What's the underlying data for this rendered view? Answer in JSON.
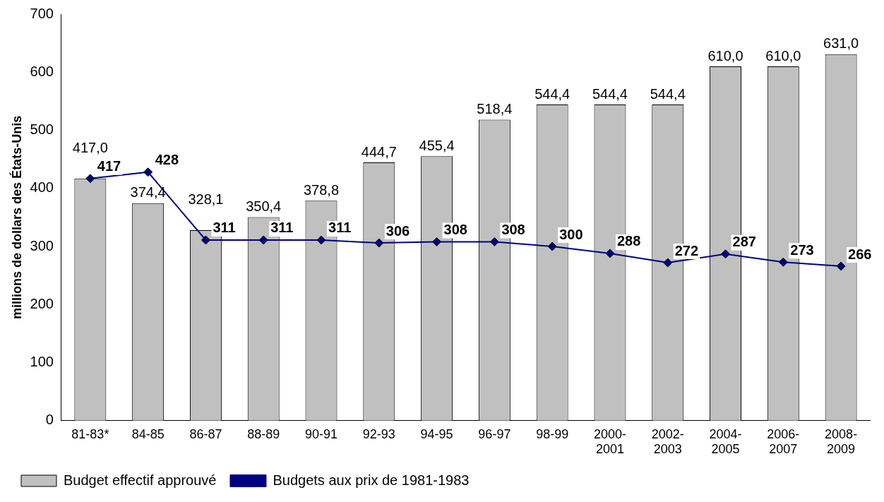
{
  "chart_data": {
    "type": "bar",
    "ylabel": "millions de dollars des États-Unis",
    "categories": [
      "81-83*",
      "84-85",
      "86-87",
      "88-89",
      "90-91",
      "92-93",
      "94-95",
      "96-97",
      "98-99",
      "2000-2001",
      "2002-2003",
      "2004-2005",
      "2006-2007",
      "2008-2009"
    ],
    "series": [
      {
        "name": "Budget effectif approuvé",
        "type": "bar",
        "color": "#c0c0c0",
        "values": [
          417.0,
          374.4,
          328.1,
          350.4,
          378.8,
          444.7,
          455.4,
          518.4,
          544.4,
          544.4,
          544.4,
          610.0,
          610.0,
          631.0
        ],
        "value_labels": [
          "417,0",
          "374,4",
          "328,1",
          "350,4",
          "378,8",
          "444,7",
          "455,4",
          "518,4",
          "544,4",
          "544,4",
          "544,4",
          "610,0",
          "610,0",
          "631,0"
        ]
      },
      {
        "name": "Budgets aux prix de 1981-1983",
        "type": "line",
        "color": "#000080",
        "marker": "diamond",
        "line_style": "solid",
        "values": [
          417,
          428,
          311,
          311,
          311,
          306,
          308,
          308,
          300,
          288,
          272,
          287,
          273,
          266
        ],
        "value_labels": [
          "417",
          "428",
          "311",
          "311",
          "311",
          "306",
          "308",
          "308",
          "300",
          "288",
          "272",
          "287",
          "273",
          "266"
        ]
      }
    ],
    "ylim": [
      0,
      700
    ],
    "yticks": [
      0,
      100,
      200,
      300,
      400,
      500,
      600,
      700
    ],
    "grid": false,
    "legend": "bottom left"
  }
}
